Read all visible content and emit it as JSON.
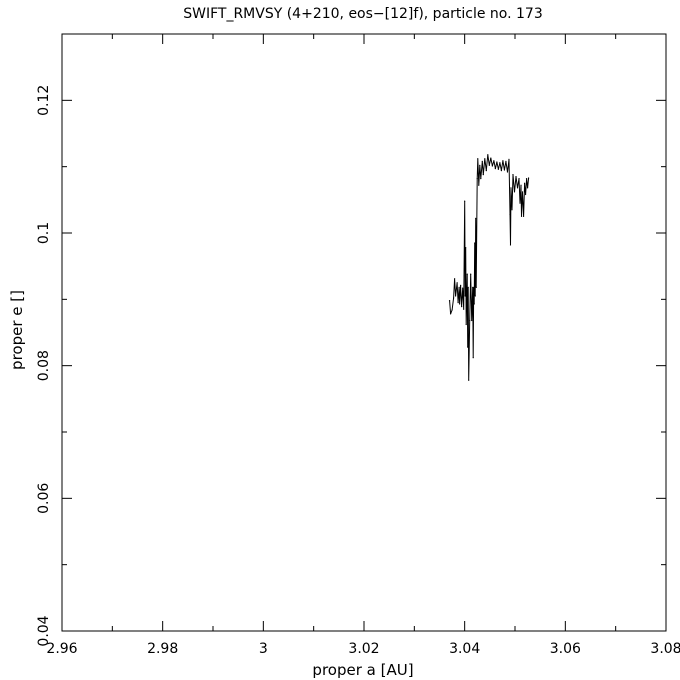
{
  "chart_data": {
    "type": "line",
    "title": "SWIFT_RMVSY (4+210, eos−[12]f), particle no. 173",
    "xlabel": "proper a [AU]",
    "ylabel": "proper e []",
    "xlim": [
      2.96,
      3.08
    ],
    "ylim": [
      0.04,
      0.13
    ],
    "xticks": [
      2.96,
      2.98,
      3.0,
      3.02,
      3.04,
      3.06,
      3.08
    ],
    "xtick_labels": [
      "2.96",
      "2.98",
      "3",
      "3.02",
      "3.04",
      "3.06",
      "3.08"
    ],
    "yticks": [
      0.04,
      0.06,
      0.08,
      0.1,
      0.12
    ],
    "ytick_labels": [
      "0.04",
      "0.06",
      "0.08",
      "0.1",
      "0.12"
    ],
    "x_minor_step": 0.01,
    "y_minor_step": 0.01,
    "grid": false,
    "series": [
      {
        "color": "#000000",
        "points": [
          [
            3.037,
            0.0898
          ],
          [
            3.0372,
            0.0878
          ],
          [
            3.0375,
            0.0884
          ],
          [
            3.0378,
            0.0902
          ],
          [
            3.038,
            0.0931
          ],
          [
            3.0382,
            0.0905
          ],
          [
            3.0385,
            0.0925
          ],
          [
            3.0387,
            0.0895
          ],
          [
            3.0389,
            0.0918
          ],
          [
            3.039,
            0.0893
          ],
          [
            3.0392,
            0.0921
          ],
          [
            3.0394,
            0.0889
          ],
          [
            3.0396,
            0.0917
          ],
          [
            3.0398,
            0.0885
          ],
          [
            3.04,
            0.1048
          ],
          [
            3.0401,
            0.0905
          ],
          [
            3.0402,
            0.0978
          ],
          [
            3.0403,
            0.0862
          ],
          [
            3.0405,
            0.0938
          ],
          [
            3.0406,
            0.0828
          ],
          [
            3.0407,
            0.0918
          ],
          [
            3.0408,
            0.0778
          ],
          [
            3.041,
            0.0868
          ],
          [
            3.0412,
            0.0938
          ],
          [
            3.0414,
            0.0868
          ],
          [
            3.0416,
            0.0918
          ],
          [
            3.0417,
            0.0812
          ],
          [
            3.0418,
            0.0918
          ],
          [
            3.0419,
            0.0893
          ],
          [
            3.042,
            0.0985
          ],
          [
            3.0421,
            0.0905
          ],
          [
            3.0422,
            0.1022
          ],
          [
            3.0423,
            0.0918
          ],
          [
            3.0425,
            0.1082
          ],
          [
            3.0426,
            0.1112
          ],
          [
            3.0428,
            0.1072
          ],
          [
            3.043,
            0.1102
          ],
          [
            3.0432,
            0.1082
          ],
          [
            3.0435,
            0.1108
          ],
          [
            3.0437,
            0.1088
          ],
          [
            3.044,
            0.1112
          ],
          [
            3.0443,
            0.1094
          ],
          [
            3.0446,
            0.1118
          ],
          [
            3.0449,
            0.1102
          ],
          [
            3.0452,
            0.1113
          ],
          [
            3.0455,
            0.1101
          ],
          [
            3.0458,
            0.1109
          ],
          [
            3.0461,
            0.1097
          ],
          [
            3.0464,
            0.1107
          ],
          [
            3.0467,
            0.1096
          ],
          [
            3.047,
            0.1106
          ],
          [
            3.0473,
            0.1094
          ],
          [
            3.0476,
            0.1109
          ],
          [
            3.0479,
            0.1095
          ],
          [
            3.0482,
            0.1108
          ],
          [
            3.0485,
            0.1092
          ],
          [
            3.0488,
            0.1111
          ],
          [
            3.049,
            0.1028
          ],
          [
            3.0491,
            0.0982
          ],
          [
            3.0492,
            0.1068
          ],
          [
            3.0494,
            0.1035
          ],
          [
            3.0496,
            0.1088
          ],
          [
            3.0499,
            0.1062
          ],
          [
            3.0502,
            0.1085
          ],
          [
            3.0505,
            0.1068
          ],
          [
            3.0508,
            0.1082
          ],
          [
            3.051,
            0.1045
          ],
          [
            3.0512,
            0.1072
          ],
          [
            3.0513,
            0.1025
          ],
          [
            3.0515,
            0.1062
          ],
          [
            3.0517,
            0.1025
          ],
          [
            3.0519,
            0.1075
          ],
          [
            3.0521,
            0.1058
          ],
          [
            3.0523,
            0.1082
          ],
          [
            3.0525,
            0.1068
          ],
          [
            3.0527,
            0.1083
          ]
        ]
      }
    ]
  }
}
